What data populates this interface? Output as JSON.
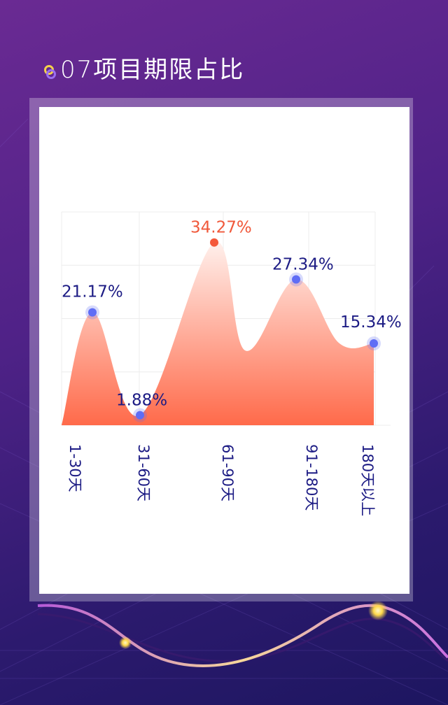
{
  "header": {
    "title": "07项目期限占比",
    "icon": "rings-icon"
  },
  "colors": {
    "area_top": "#fff0ec",
    "area_bottom": "#ff6a4a",
    "point": "#5f6df5",
    "highlight_point": "#f4583a",
    "label": "#1c1b84",
    "highlight_label": "#f0583a",
    "grid": "#ececec"
  },
  "chart_data": {
    "type": "area",
    "categories": [
      "1-30天",
      "31-60天",
      "61-90天",
      "91-180天",
      "180天以上"
    ],
    "values": [
      21.17,
      1.88,
      34.27,
      27.34,
      15.34
    ],
    "data_labels": [
      "21.17%",
      "1.88%",
      "34.27%",
      "27.34%",
      "15.34%"
    ],
    "highlight_index": 2,
    "ylim": [
      0,
      40
    ],
    "grid": true,
    "legend": "none"
  }
}
